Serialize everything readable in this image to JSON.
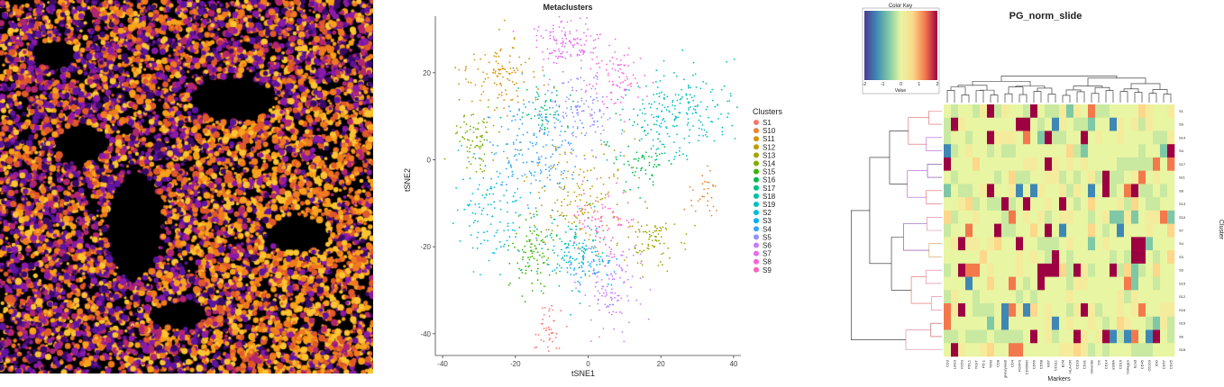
{
  "tsne": {
    "chart_data": {
      "type": "scatter",
      "title": "Metaclusters",
      "xlabel": "tSNE1",
      "ylabel": "tSNE2",
      "xlim": [
        -42,
        42
      ],
      "ylim": [
        -45,
        33
      ],
      "xticks": [
        -40,
        -20,
        0,
        20,
        40
      ],
      "yticks": [
        -40,
        -20,
        0,
        20
      ],
      "legend_title": "Clusters",
      "legend_position": "right",
      "series": [
        {
          "name": "S1",
          "color": "#F8766D",
          "center": [
            -11,
            -39
          ],
          "spread": [
            2,
            3
          ],
          "n": 40
        },
        {
          "name": "S10",
          "color": "#EA8331",
          "center": [
            32,
            -7
          ],
          "spread": [
            2,
            3
          ],
          "n": 30
        },
        {
          "name": "S11",
          "color": "#D89000",
          "center": [
            -24,
            20
          ],
          "spread": [
            5,
            4
          ],
          "n": 110
        },
        {
          "name": "S12",
          "color": "#C09B00",
          "center": [
            -2,
            -8
          ],
          "spread": [
            7,
            6
          ],
          "n": 150
        },
        {
          "name": "S13",
          "color": "#A3A500",
          "center": [
            18,
            -18
          ],
          "spread": [
            4,
            3
          ],
          "n": 80
        },
        {
          "name": "S14",
          "color": "#7CAE00",
          "center": [
            -31,
            5
          ],
          "spread": [
            3,
            4
          ],
          "n": 80
        },
        {
          "name": "S15",
          "color": "#39B600",
          "center": [
            -15,
            -22
          ],
          "spread": [
            3,
            4
          ],
          "n": 90
        },
        {
          "name": "S16",
          "color": "#00BB4E",
          "center": [
            14,
            0
          ],
          "spread": [
            5,
            4
          ],
          "n": 70
        },
        {
          "name": "S17",
          "color": "#00BF7D",
          "center": [
            -12,
            12
          ],
          "spread": [
            4,
            3
          ],
          "n": 60
        },
        {
          "name": "S18",
          "color": "#00C1A3",
          "center": [
            -5,
            -20
          ],
          "spread": [
            5,
            4
          ],
          "n": 100
        },
        {
          "name": "S19",
          "color": "#00BFC4",
          "center": [
            25,
            11
          ],
          "spread": [
            8,
            5
          ],
          "n": 220
        },
        {
          "name": "S2",
          "color": "#00BAE0",
          "center": [
            -26,
            -12
          ],
          "spread": [
            5,
            6
          ],
          "n": 120
        },
        {
          "name": "S3",
          "color": "#00B0F6",
          "center": [
            -1,
            -24
          ],
          "spread": [
            4,
            4
          ],
          "n": 80
        },
        {
          "name": "S4",
          "color": "#35A2FF",
          "center": [
            -14,
            3
          ],
          "spread": [
            6,
            6
          ],
          "n": 170
        },
        {
          "name": "S5",
          "color": "#9590FF",
          "center": [
            -2,
            12
          ],
          "spread": [
            5,
            5
          ],
          "n": 120
        },
        {
          "name": "S6",
          "color": "#C77CFF",
          "center": [
            6,
            -29
          ],
          "spread": [
            4,
            5
          ],
          "n": 120
        },
        {
          "name": "S7",
          "color": "#E76BF3",
          "center": [
            -6,
            27
          ],
          "spread": [
            5,
            3
          ],
          "n": 130
        },
        {
          "name": "S8",
          "color": "#FA62DB",
          "center": [
            8,
            18
          ],
          "spread": [
            4,
            4
          ],
          "n": 80
        },
        {
          "name": "S9",
          "color": "#FF62BC",
          "center": [
            4,
            -14
          ],
          "spread": [
            4,
            4
          ],
          "n": 80
        }
      ]
    }
  },
  "heatmap": {
    "chart_data": {
      "type": "heatmap",
      "title": "PG_norm_slide",
      "xlabel": "Markers",
      "ylabel": "Cluster",
      "color_key": {
        "title": "Color Key",
        "label": "Value",
        "range": [
          -2,
          2
        ],
        "ticks": [
          "-2",
          "-1",
          "0",
          "1",
          "2"
        ],
        "colors": [
          "#4a3b8f",
          "#3f88b5",
          "#7fc8a5",
          "#e8f5a2",
          "#fdd78a",
          "#f3794c",
          "#9e0142"
        ]
      },
      "rows": [
        "S1",
        "S9",
        "S14",
        "S4",
        "S17",
        "S11",
        "S8",
        "S13",
        "S10",
        "S7",
        "S4",
        "S3",
        "S5",
        "S15",
        "S12",
        "S16",
        "S15",
        "S6",
        "S18"
      ],
      "columns": [
        "CD3",
        "LAG3",
        "ICOS",
        "PDL1",
        "TIGIT",
        "PD-1",
        "TIM3",
        "CD8",
        "granzymeB",
        "CD4",
        "FOXP3",
        "CD45RO",
        "CD56",
        "CD68",
        "Ki67",
        "CD11c",
        "B2M",
        "HLA-DR",
        "CD20",
        "CD31",
        "Vimentin",
        "CK",
        "CD14",
        "aSMA",
        "CD16",
        "Collagen",
        "Ecad",
        "CD45",
        "CD163",
        "IDO",
        "CD57",
        "CD25"
      ]
    }
  },
  "image_panel": {
    "colors": [
      "#3a0a6b",
      "#5e14a0",
      "#8c1aa8",
      "#b3266e",
      "#e0582a",
      "#f07a1e",
      "#f9a21a",
      "#fbc430"
    ]
  }
}
